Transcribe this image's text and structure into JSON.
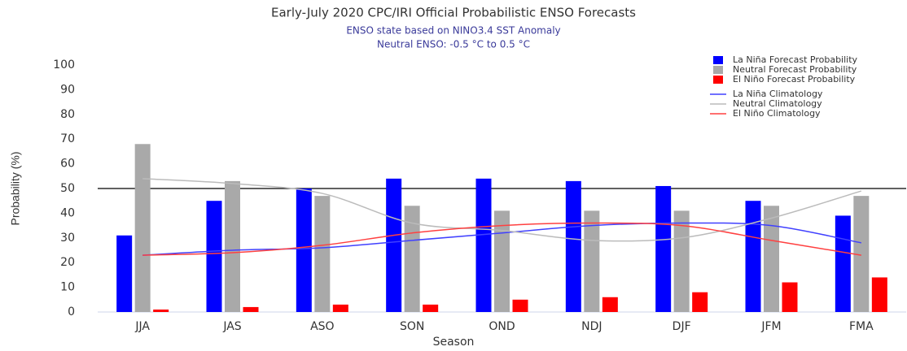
{
  "chart_data": {
    "type": "bar",
    "title": "Early-July 2020 CPC/IRI Official Probabilistic ENSO Forecasts",
    "subtitle": [
      "ENSO state based on NINO3.4 SST Anomaly",
      "Neutral ENSO: -0.5 °C to 0.5 °C"
    ],
    "x_label": "Season",
    "y_label": "Probability (%)",
    "categories": [
      "JJA",
      "JAS",
      "ASO",
      "SON",
      "OND",
      "NDJ",
      "DJF",
      "JFM",
      "FMA"
    ],
    "series": [
      {
        "name": "La Niña Forecast Probability",
        "type": "bar",
        "color": "#0000ff",
        "values": [
          31,
          45,
          50,
          54,
          54,
          53,
          51,
          45,
          39
        ]
      },
      {
        "name": "Neutral Forecast Probability",
        "type": "bar",
        "color": "#a9a9a9",
        "values": [
          68,
          53,
          47,
          43,
          41,
          41,
          41,
          43,
          47
        ]
      },
      {
        "name": "El Niño Forecast Probability",
        "type": "bar",
        "color": "#ff0000",
        "values": [
          1,
          2,
          3,
          3,
          5,
          6,
          8,
          12,
          14
        ]
      },
      {
        "name": "La Niña Climatology",
        "type": "line",
        "color": "#4040ff",
        "values": [
          23,
          25,
          26,
          29,
          32,
          35,
          36,
          35,
          28
        ]
      },
      {
        "name": "Neutral Climatology",
        "type": "line",
        "color": "#bbbbbb",
        "values": [
          54,
          52,
          48,
          36,
          33,
          29,
          30,
          38,
          49
        ]
      },
      {
        "name": "El Niño Climatology",
        "type": "line",
        "color": "#ff4040",
        "values": [
          23,
          24,
          27,
          32,
          35,
          36,
          35,
          29,
          23
        ]
      }
    ],
    "reference_line": 50,
    "ylim": [
      0,
      100
    ],
    "yticks": [
      0,
      10,
      20,
      30,
      40,
      50,
      60,
      70,
      80,
      90,
      100
    ],
    "legend": "top-right"
  }
}
